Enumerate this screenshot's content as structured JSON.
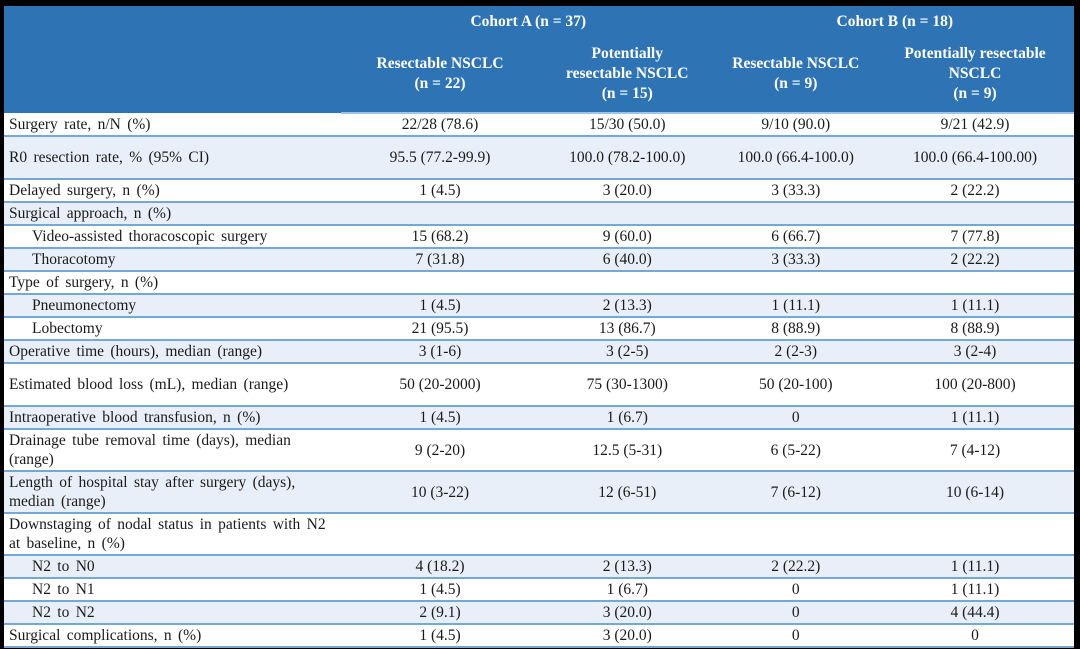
{
  "colors": {
    "header_bg": "#2E74B5",
    "row_alt": "#E9EFF8",
    "border": "#74A8D8",
    "frame": "#000000",
    "header_text": "#FFFFFF",
    "text": "#1A1A1A"
  },
  "table": {
    "header": {
      "groups": [
        {
          "label": "Cohort A (n = 37)"
        },
        {
          "label": "Cohort B (n = 18)"
        }
      ],
      "columns": [
        "Resectable NSCLC\n(n = 22)",
        "Potentially\nresectable NSCLC\n(n = 15)",
        "Resectable NSCLC\n(n = 9)",
        "Potentially resectable\nNSCLC\n(n = 9)"
      ]
    },
    "rows": [
      {
        "label": "Surgery rate, n/N (%)",
        "indent": false,
        "tall": false,
        "values": [
          "22/28 (78.6)",
          "15/30 (50.0)",
          "9/10 (90.0)",
          "9/21 (42.9)"
        ]
      },
      {
        "label": "R0 resection rate, % (95% CI)",
        "indent": false,
        "tall": true,
        "values": [
          "95.5 (77.2-99.9)",
          "100.0 (78.2-100.0)",
          "100.0 (66.4-100.0)",
          "100.0 (66.4-100.00)"
        ]
      },
      {
        "label": "Delayed surgery, n (%)",
        "indent": false,
        "tall": false,
        "values": [
          "1 (4.5)",
          "3 (20.0)",
          "3 (33.3)",
          "2 (22.2)"
        ]
      },
      {
        "label": "Surgical approach, n (%)",
        "indent": false,
        "tall": false,
        "values": [
          "",
          "",
          "",
          ""
        ]
      },
      {
        "label": "Video-assisted thoracoscopic surgery",
        "indent": true,
        "tall": false,
        "values": [
          "15 (68.2)",
          "9 (60.0)",
          "6 (66.7)",
          "7 (77.8)"
        ]
      },
      {
        "label": "Thoracotomy",
        "indent": true,
        "tall": false,
        "values": [
          "7 (31.8)",
          "6 (40.0)",
          "3 (33.3)",
          "2 (22.2)"
        ]
      },
      {
        "label": "Type of surgery, n (%)",
        "indent": false,
        "tall": false,
        "values": [
          "",
          "",
          "",
          ""
        ]
      },
      {
        "label": "Pneumonectomy",
        "indent": true,
        "tall": false,
        "values": [
          "1 (4.5)",
          "2 (13.3)",
          "1 (11.1)",
          "1 (11.1)"
        ]
      },
      {
        "label": "Lobectomy",
        "indent": true,
        "tall": false,
        "values": [
          "21 (95.5)",
          "13 (86.7)",
          "8 (88.9)",
          "8 (88.9)"
        ]
      },
      {
        "label": "Operative time (hours), median (range)",
        "indent": false,
        "tall": false,
        "values": [
          "3 (1-6)",
          "3 (2-5)",
          "2 (2-3)",
          "3 (2-4)"
        ]
      },
      {
        "label": "Estimated blood loss (mL), median (range)",
        "indent": false,
        "tall": true,
        "values": [
          "50 (20-2000)",
          "75 (30-1300)",
          "50 (20-100)",
          "100 (20-800)"
        ]
      },
      {
        "label": "Intraoperative blood transfusion, n (%)",
        "indent": false,
        "tall": false,
        "values": [
          "1 (4.5)",
          "1 (6.7)",
          "0",
          "1 (11.1)"
        ]
      },
      {
        "label": "Drainage tube removal time (days), median (range)",
        "indent": false,
        "tall": false,
        "values": [
          "9 (2-20)",
          "12.5 (5-31)",
          "6 (5-22)",
          "7 (4-12)"
        ]
      },
      {
        "label": "Length of hospital stay after surgery (days), median (range)",
        "indent": false,
        "tall": false,
        "values": [
          "10 (3-22)",
          "12 (6-51)",
          "7 (6-12)",
          "10 (6-14)"
        ]
      },
      {
        "label": "Downstaging of nodal status in patients with N2 at baseline, n (%)",
        "indent": false,
        "tall": false,
        "values": [
          "",
          "",
          "",
          ""
        ]
      },
      {
        "label": "N2 to N0",
        "indent": true,
        "tall": false,
        "values": [
          "4 (18.2)",
          "2 (13.3)",
          "2 (22.2)",
          "1 (11.1)"
        ]
      },
      {
        "label": "N2 to N1",
        "indent": true,
        "tall": false,
        "values": [
          "1 (4.5)",
          "1 (6.7)",
          "0",
          "1 (11.1)"
        ]
      },
      {
        "label": "N2 to N2",
        "indent": true,
        "tall": false,
        "values": [
          "2 (9.1)",
          "3 (20.0)",
          "0",
          "4 (44.4)"
        ]
      },
      {
        "label": "Surgical complications, n (%)",
        "indent": false,
        "tall": false,
        "values": [
          "1 (4.5)",
          "3 (20.0)",
          "0",
          "0"
        ]
      }
    ]
  }
}
